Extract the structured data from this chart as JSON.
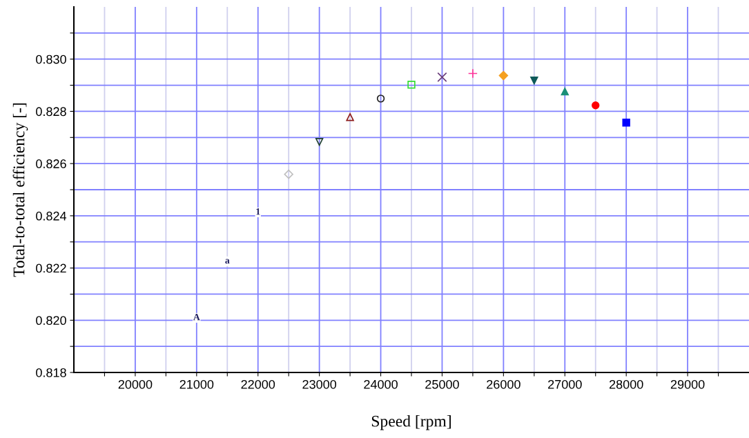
{
  "chart_data": {
    "type": "scatter",
    "xlabel": "Speed [rpm]",
    "ylabel": "Total-to-total efficiency [-]",
    "series": [
      {
        "color": "#bfbfbf",
        "marker": "diamond open",
        "x": [
          22500
        ],
        "values": [
          0.82559
        ]
      },
      {
        "color": "#204030",
        "marker": "triangle_down open",
        "x": [
          23000
        ],
        "values": [
          0.82683
        ]
      },
      {
        "color": "#8b1a1a",
        "marker": "triangle open",
        "x": [
          23500
        ],
        "values": [
          0.82778
        ]
      },
      {
        "color": "#202020",
        "marker": "circle open",
        "x": [
          24000
        ],
        "values": [
          0.82849
        ]
      },
      {
        "color": "#33dd33",
        "marker": "square open",
        "x": [
          24500
        ],
        "values": [
          0.82902
        ]
      },
      {
        "color": "#6a3d7a",
        "marker": "cross",
        "x": [
          25000
        ],
        "values": [
          0.82931
        ]
      },
      {
        "color": "#ff3399",
        "marker": "plus",
        "x": [
          25500
        ],
        "values": [
          0.82945
        ]
      },
      {
        "color": "#f5a020",
        "marker": "diamond",
        "x": [
          26000
        ],
        "values": [
          0.82937
        ]
      },
      {
        "color": "#0e5a5a",
        "marker": "triangle_down",
        "x": [
          26500
        ],
        "values": [
          0.82918
        ]
      },
      {
        "color": "#1a8f78",
        "marker": "triangle",
        "x": [
          27000
        ],
        "values": [
          0.82876
        ]
      },
      {
        "color": "#ff0000",
        "marker": "circle",
        "x": [
          27500
        ],
        "values": [
          0.82823
        ]
      },
      {
        "color": "#0000ff",
        "marker": "square",
        "x": [
          28000
        ],
        "values": [
          0.82757
        ]
      }
    ],
    "xlim": [
      19000,
      30000
    ],
    "xticks": [
      {
        "value": 19500,
        "label": null
      },
      20000,
      {
        "value": 20500,
        "label": null
      },
      21000,
      {
        "value": 21500,
        "label": null
      },
      22000,
      {
        "value": 22500,
        "label": null
      },
      23000,
      {
        "value": 23500,
        "label": null
      },
      24000,
      {
        "value": 24500,
        "label": null
      },
      25000,
      {
        "value": 25500,
        "label": null
      },
      26000,
      {
        "value": 26500,
        "label": null
      },
      27000,
      {
        "value": 27500,
        "label": null
      },
      28000,
      {
        "value": 28500,
        "label": null
      },
      29000,
      {
        "value": 29500,
        "label": null
      }
    ],
    "ylim": [
      0.818,
      0.832
    ],
    "yticks": [
      {
        "value": 0.818,
        "label": "0.818"
      },
      {
        "value": 0.819,
        "label": null
      },
      {
        "value": 0.82,
        "label": "0.820"
      },
      {
        "value": 0.821,
        "label": null
      },
      {
        "value": 0.822,
        "label": "0.822"
      },
      {
        "value": 0.823,
        "label": null
      },
      {
        "value": 0.824,
        "label": "0.824"
      },
      {
        "value": 0.825,
        "label": null
      },
      {
        "value": 0.826,
        "label": "0.826"
      },
      {
        "value": 0.827,
        "label": null
      },
      {
        "value": 0.828,
        "label": "0.828"
      },
      {
        "value": 0.829,
        "label": null
      },
      {
        "value": 0.83,
        "label": "0.830"
      },
      {
        "value": 0.831,
        "label": null
      }
    ],
    "annotations": [
      {
        "text": "A",
        "x": 21000,
        "y": 0.82009
      },
      {
        "text": "a",
        "x": 21500,
        "y": 0.82226
      },
      {
        "text": "1",
        "x": 22000,
        "y": 0.82413
      }
    ],
    "grid": true
  }
}
